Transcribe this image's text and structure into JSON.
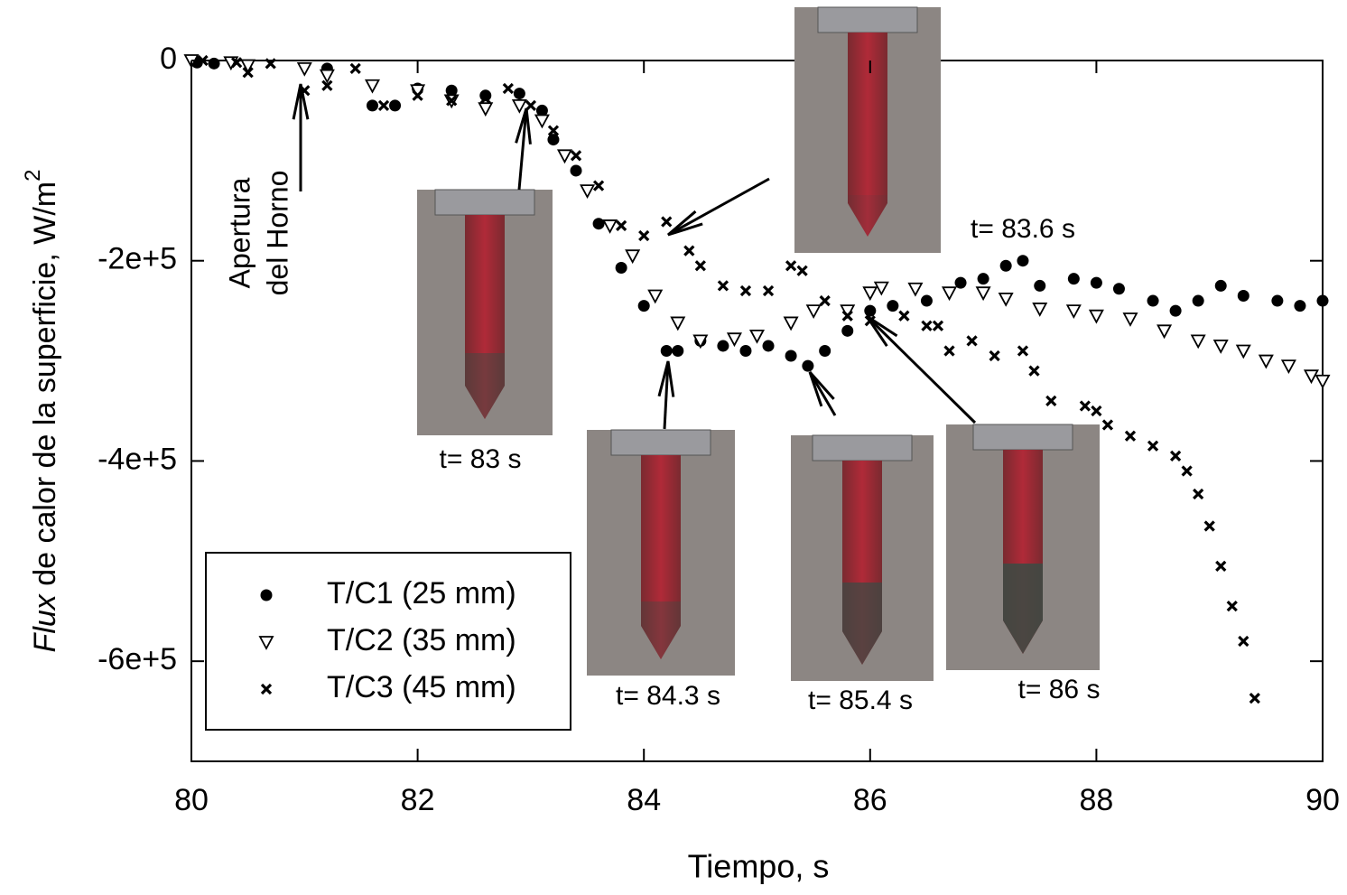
{
  "chart_data": {
    "type": "scatter",
    "x_label": "Tiempo, s",
    "y_label": {
      "italic": "Flux",
      "text": " de calor de la superficie, W/m",
      "sup": "2"
    },
    "xlim": [
      80,
      90
    ],
    "xticks": [
      80,
      82,
      84,
      86,
      88,
      90
    ],
    "ylim": [
      -700000,
      0
    ],
    "yticks": [
      0,
      {
        "value": -200000,
        "label": "-2e+5"
      },
      {
        "value": -400000,
        "label": "-4e+5"
      },
      {
        "value": -600000,
        "label": "-6e+5"
      }
    ],
    "legend": "lower left",
    "annotations": [
      "Apertura",
      "del Horno",
      "t= 83 s",
      "t= 83.6 s",
      "t= 84.3 s",
      "t= 85.4 s",
      "t= 86 s"
    ],
    "series": [
      {
        "name": "T/C1 (25 mm)",
        "color": "#000000",
        "marker": "circle",
        "x": [
          80.05,
          80.2,
          81.2,
          81.6,
          81.8,
          82.0,
          82.3,
          82.6,
          82.9,
          83.1,
          83.2,
          83.4,
          83.6,
          83.8,
          84.0,
          84.2,
          84.3,
          84.5,
          84.7,
          84.9,
          85.1,
          85.3,
          85.45,
          85.6,
          85.8,
          86.0,
          86.2,
          86.5,
          86.8,
          87.0,
          87.2,
          87.35,
          87.5,
          87.8,
          88.0,
          88.2,
          88.5,
          88.7,
          88.9,
          89.1,
          89.3,
          89.6,
          89.8,
          90.0
        ],
        "values": [
          -2000,
          -3000,
          -8000,
          -45000,
          -45000,
          -28000,
          -30000,
          -35000,
          -33000,
          -50000,
          -79000,
          -110000,
          -163000,
          -207000,
          -245000,
          -290000,
          -290000,
          -280000,
          -285000,
          -290000,
          -285000,
          -295000,
          -305000,
          -290000,
          -270000,
          -250000,
          -245000,
          -240000,
          -222000,
          -218000,
          -205000,
          -200000,
          -225000,
          -218000,
          -222000,
          -228000,
          -240000,
          -250000,
          -240000,
          -225000,
          -235000,
          -240000,
          -245000,
          -240000
        ]
      },
      {
        "name": "T/C2 (35 mm)",
        "color": "#000000",
        "marker": "triangle",
        "x": [
          80.0,
          80.35,
          80.5,
          81.0,
          81.2,
          81.6,
          82.0,
          82.3,
          82.6,
          82.9,
          83.1,
          83.3,
          83.5,
          83.7,
          83.9,
          84.1,
          84.3,
          84.5,
          84.8,
          85.0,
          85.3,
          85.5,
          85.8,
          86.0,
          86.1,
          86.4,
          86.7,
          87.0,
          87.2,
          87.5,
          87.8,
          88.0,
          88.3,
          88.6,
          88.9,
          89.1,
          89.3,
          89.5,
          89.7,
          89.9,
          90.0
        ],
        "values": [
          0,
          -2000,
          -5000,
          -8000,
          -15000,
          -25000,
          -30000,
          -40000,
          -48000,
          -45000,
          -60000,
          -95000,
          -130000,
          -165000,
          -195000,
          -235000,
          -262000,
          -280000,
          -278000,
          -275000,
          -262000,
          -250000,
          -250000,
          -232000,
          -227000,
          -228000,
          -232000,
          -232000,
          -238000,
          -248000,
          -250000,
          -255000,
          -258000,
          -270000,
          -280000,
          -285000,
          -290000,
          -300000,
          -305000,
          -315000,
          -320000
        ]
      },
      {
        "name": "T/C3 (45 mm)",
        "color": "#000000",
        "marker": "cross",
        "x": [
          80.1,
          80.4,
          80.5,
          80.7,
          81.0,
          81.2,
          81.45,
          81.7,
          82.0,
          82.3,
          82.6,
          82.8,
          83.0,
          83.2,
          83.4,
          83.6,
          83.8,
          84.0,
          84.2,
          84.4,
          84.5,
          84.7,
          84.9,
          85.1,
          85.3,
          85.4,
          85.6,
          85.8,
          86.0,
          86.3,
          86.5,
          86.6,
          86.7,
          86.9,
          87.1,
          87.35,
          87.45,
          87.6,
          87.9,
          88.0,
          88.1,
          88.3,
          88.5,
          88.7,
          88.8,
          88.9,
          89.0,
          89.1,
          89.2,
          89.3,
          89.4
        ],
        "values": [
          0,
          -2000,
          -12000,
          -3000,
          -30000,
          -25000,
          -8000,
          -45000,
          -35000,
          -40000,
          -38000,
          -28000,
          -45000,
          -70000,
          -95000,
          -125000,
          -165000,
          -175000,
          -161000,
          -190000,
          -205000,
          -225000,
          -230000,
          -230000,
          -205000,
          -210000,
          -240000,
          -255000,
          -260000,
          -255000,
          -265000,
          -265000,
          -290000,
          -280000,
          -295000,
          -290000,
          -310000,
          -340000,
          -345000,
          -350000,
          -364000,
          -375000,
          -385000,
          -395000,
          -410000,
          -433000,
          -465000,
          -505000,
          -545000,
          -580000,
          -637000
        ]
      }
    ]
  }
}
